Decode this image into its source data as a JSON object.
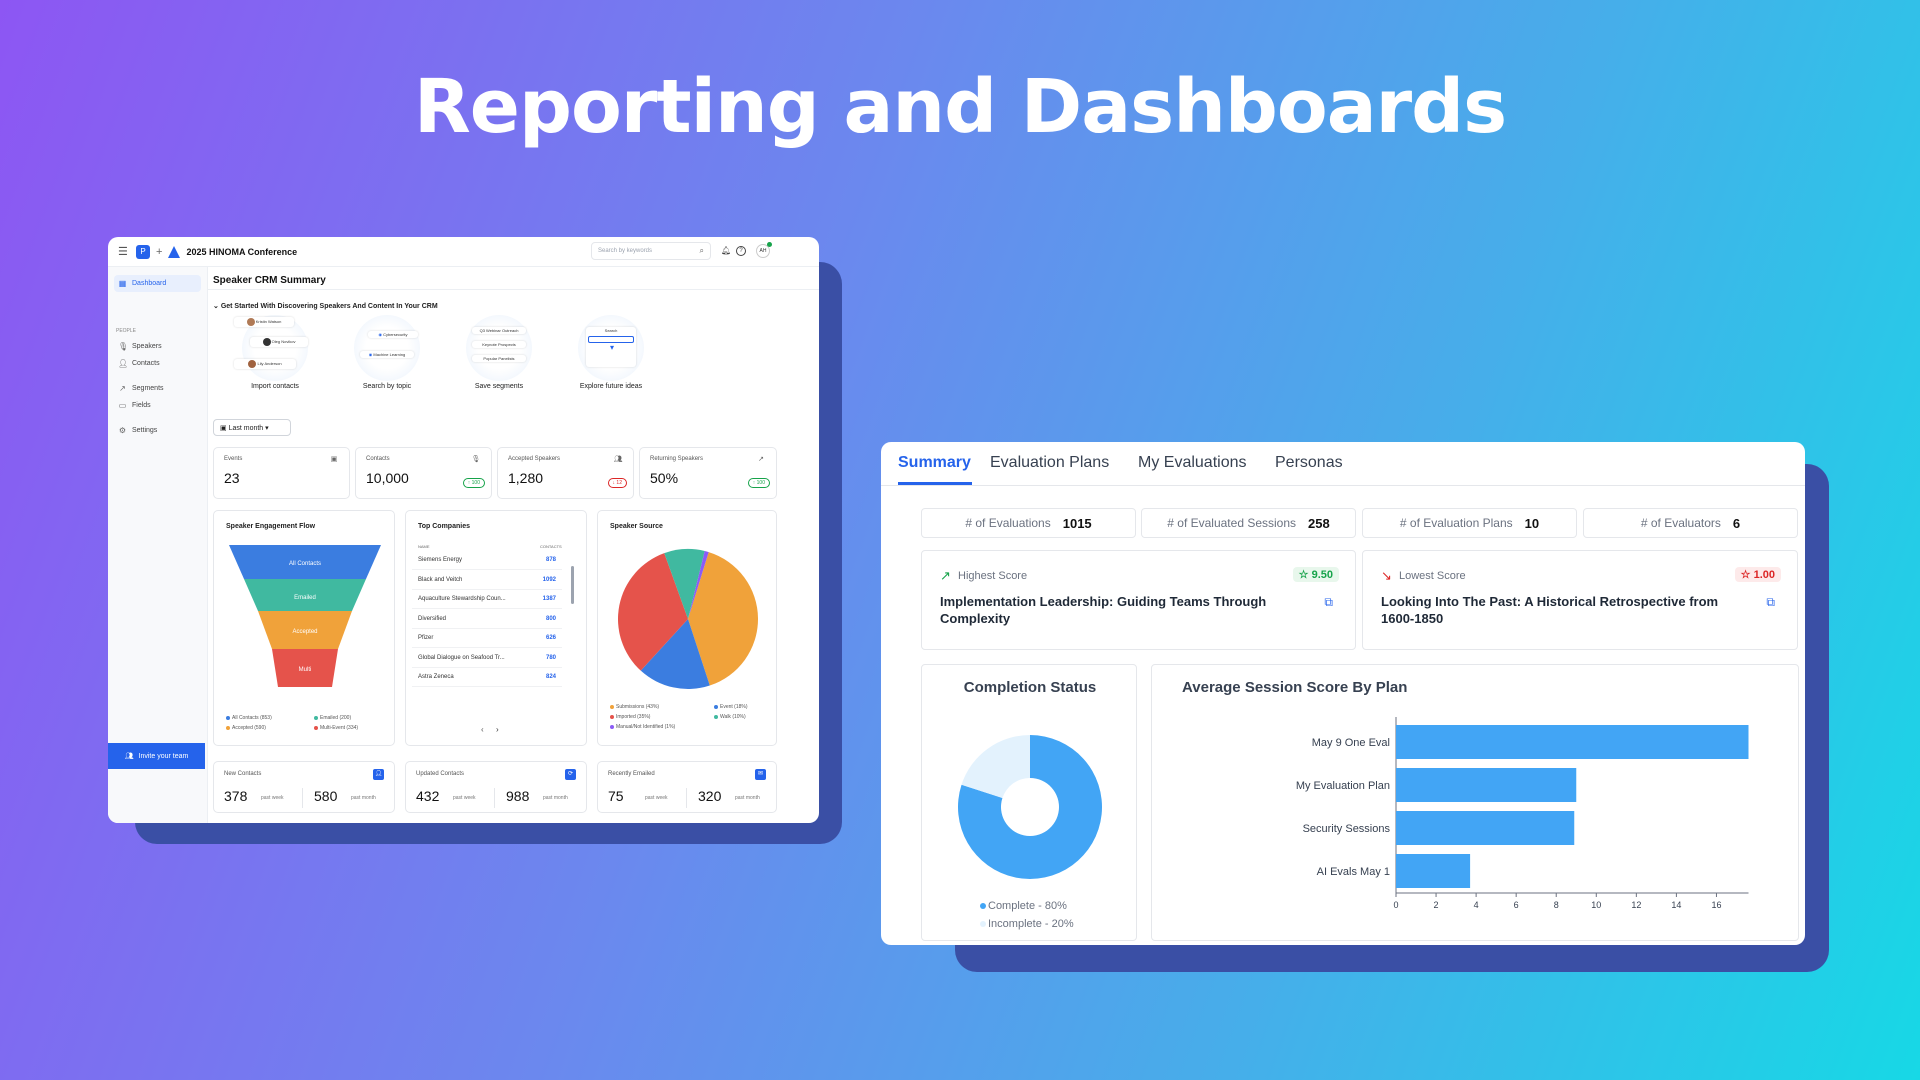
{
  "hero_title": "Reporting and Dashboards",
  "app": {
    "conference": "2025 HINOMA Conference",
    "search_placeholder": "Search by keywords",
    "avatar": "AH",
    "sidebar": {
      "dashboard": "Dashboard",
      "section": "PEOPLE",
      "speakers": "Speakers",
      "contacts": "Contacts",
      "segments": "Segments",
      "fields": "Fields",
      "settings": "Settings",
      "invite": "Invite your team"
    },
    "page_title": "Speaker CRM Summary",
    "getting_started": "Get Started With Discovering Speakers And Content In Your CRM",
    "onboarding": [
      {
        "label": "Import contacts"
      },
      {
        "label": "Search by topic"
      },
      {
        "label": "Save segments"
      },
      {
        "label": "Explore future ideas"
      }
    ],
    "onboarding_mini": {
      "person1": "Kristin Watson",
      "person2": "Oleg Novikov",
      "person3": "Lily Anderson",
      "topic1": "Cybersecurity",
      "topic2": "Machine Learning",
      "seg1": "Q3 Webinar Outreach",
      "seg2": "Keynote Prospects",
      "seg3": "Popular Panelists",
      "explore": "Search"
    },
    "range_select": "Last month",
    "stats": [
      {
        "label": "Events",
        "value": "23",
        "badge": ""
      },
      {
        "label": "Contacts",
        "value": "10,000",
        "badge": "↑ 100"
      },
      {
        "label": "Accepted Speakers",
        "value": "1,280",
        "badge": "↓ 12"
      },
      {
        "label": "Returning Speakers",
        "value": "50%",
        "badge": "↑ 100"
      }
    ],
    "funnel": {
      "title": "Speaker Engagement Flow",
      "stages": [
        "All Contacts",
        "Emailed",
        "Accepted",
        "Multi"
      ],
      "legend": [
        "All Contacts (853)",
        "Emailed (200)",
        "Accepted (590)",
        "Multi-Event (334)"
      ],
      "colors": [
        "#3b7de0",
        "#40b9a0",
        "#f0a23a",
        "#e5534b"
      ]
    },
    "companies": {
      "title": "Top Companies",
      "col_name": "NAME",
      "col_contacts": "CONTACTS",
      "rows": [
        {
          "name": "Siemens Energy",
          "count": "878"
        },
        {
          "name": "Black and Veitch",
          "count": "1092"
        },
        {
          "name": "Aquaculture Stewardship Coun...",
          "count": "1387"
        },
        {
          "name": "Diversified",
          "count": "800"
        },
        {
          "name": "Pfizer",
          "count": "626"
        },
        {
          "name": "Global Dialogue on Seafood Tr...",
          "count": "780"
        },
        {
          "name": "Astra Zeneca",
          "count": "824"
        }
      ],
      "prev": "‹",
      "next": "›"
    },
    "source": {
      "title": "Speaker Source",
      "legend": [
        "Submissions (43%)",
        "Event (18%)",
        "Imported (35%)",
        "Walk (10%)",
        "Manual/Not Identified (1%)"
      ]
    },
    "bottom": [
      {
        "label": "New Contacts",
        "week": "378",
        "month": "580"
      },
      {
        "label": "Updated Contacts",
        "week": "432",
        "month": "988"
      },
      {
        "label": "Recently Emailed",
        "week": "75",
        "month": "320"
      }
    ],
    "past_week": "past week",
    "past_month": "past month"
  },
  "eval": {
    "tabs": [
      "Summary",
      "Evaluation Plans",
      "My Evaluations",
      "Personas"
    ],
    "kpis": [
      {
        "label": "# of Evaluations",
        "value": "1015"
      },
      {
        "label": "# of Evaluated Sessions",
        "value": "258"
      },
      {
        "label": "# of Evaluation Plans",
        "value": "10"
      },
      {
        "label": "# of Evaluators",
        "value": "6"
      }
    ],
    "highest": {
      "label": "Highest Score",
      "badge": "☆ 9.50",
      "title": "Implementation Leadership: Guiding Teams Through Complexity"
    },
    "lowest": {
      "label": "Lowest Score",
      "badge": "☆ 1.00",
      "title": "Looking Into The Past: A Historical Retrospective from 1600-1850"
    },
    "completion_title": "Completion Status",
    "completion_legend": [
      "Complete - 80%",
      "Incomplete - 20%"
    ],
    "avg_title": "Average Session Score By Plan"
  },
  "chart_data": [
    {
      "type": "pie",
      "title": "Completion Status",
      "categories": [
        "Complete",
        "Incomplete"
      ],
      "values": [
        80,
        20
      ],
      "colors": [
        "#42a5f5",
        "#e3f2fd"
      ]
    },
    {
      "type": "bar",
      "orientation": "horizontal",
      "title": "Average Session Score By Plan",
      "categories": [
        "May 9 One Eval",
        "My Evaluation Plan",
        "Security Sessions",
        "AI Evals May 1"
      ],
      "values": [
        17.6,
        9.0,
        8.9,
        3.7
      ],
      "xlim": [
        0,
        17.6
      ],
      "xticks": [
        0,
        2,
        4,
        6,
        8,
        10,
        12,
        14,
        16
      ],
      "color": "#42a5f5"
    },
    {
      "type": "pie",
      "title": "Speaker Source",
      "categories": [
        "Submissions",
        "Event",
        "Imported",
        "Walk",
        "Manual/Not Identified"
      ],
      "values": [
        43,
        18,
        35,
        10,
        1
      ],
      "colors": [
        "#f0a23a",
        "#3b7de0",
        "#e5534b",
        "#40b9a0",
        "#8b5cf6"
      ]
    }
  ]
}
